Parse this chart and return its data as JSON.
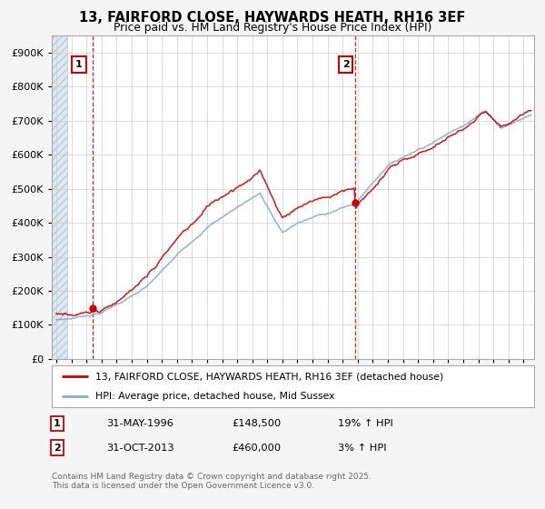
{
  "title": "13, FAIRFORD CLOSE, HAYWARDS HEATH, RH16 3EF",
  "subtitle": "Price paid vs. HM Land Registry's House Price Index (HPI)",
  "legend_line1": "13, FAIRFORD CLOSE, HAYWARDS HEATH, RH16 3EF (detached house)",
  "legend_line2": "HPI: Average price, detached house, Mid Sussex",
  "annotation1_date": "31-MAY-1996",
  "annotation1_price": 148500,
  "annotation1_price_str": "£148,500",
  "annotation1_pct": "19% ↑ HPI",
  "annotation2_date": "31-OCT-2013",
  "annotation2_price": 460000,
  "annotation2_price_str": "£460,000",
  "annotation2_pct": "3% ↑ HPI",
  "footer": "Contains HM Land Registry data © Crown copyright and database right 2025.\nThis data is licensed under the Open Government Licence v3.0.",
  "price_color": "#cc0000",
  "hpi_color": "#88aacc",
  "vline_color": "#cc0000",
  "fig_bg_color": "#f5f5f5",
  "plot_bg_color": "#ffffff",
  "hatch_color": "#dde8f0",
  "ylim": [
    0,
    950000
  ],
  "yticks": [
    0,
    100000,
    200000,
    300000,
    400000,
    500000,
    600000,
    700000,
    800000,
    900000
  ],
  "sale1_year": 1996.42,
  "sale1_price": 148500,
  "sale2_year": 2013.83,
  "sale2_price": 460000,
  "xmin": 1994.0,
  "xmax": 2025.5
}
